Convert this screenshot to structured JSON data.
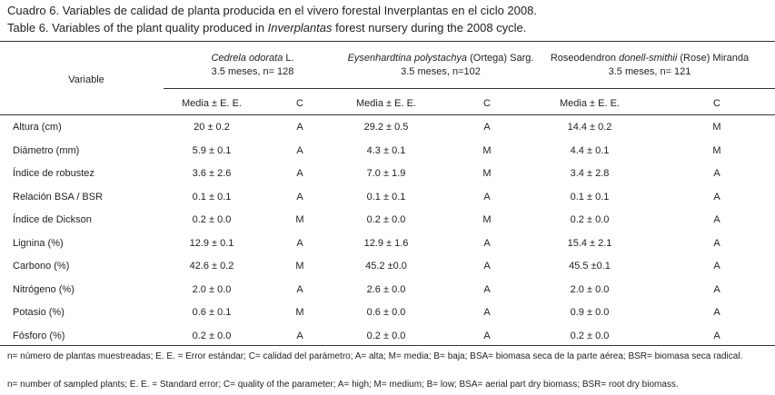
{
  "caption": {
    "es": [
      {
        "text": "Cuadro 6. Variables de calidad de planta producida en el vivero forestal Inverplantas en el ciclo 2008."
      }
    ],
    "en": [
      {
        "text": "Table 6. Variables of the plant quality produced in "
      },
      {
        "text": "Inverplantas",
        "italic": true
      },
      {
        "text": " forest nursery during the 2008 cycle."
      }
    ]
  },
  "table": {
    "header": {
      "variable": "Variable",
      "groups": [
        {
          "name": [
            {
              "text": "Cedrela odorata",
              "italic": true
            },
            {
              "text": " L."
            }
          ],
          "detail": "3.5 meses, n= 128",
          "columns": [
            "Media ± E. E.",
            "C"
          ]
        },
        {
          "name": [
            {
              "text": "Eysenhardtina polystachya",
              "italic": true
            },
            {
              "text": " (Ortega) Sarg."
            }
          ],
          "detail": "3.5 meses, n=102",
          "columns": [
            "Media ± E. E.",
            "C"
          ]
        },
        {
          "name": [
            {
              "text": "Roseodendron "
            },
            {
              "text": "donell-smithii",
              "italic": true
            },
            {
              "text": " (Rose) Miranda"
            }
          ],
          "detail": "3.5 meses, n= 121",
          "columns": [
            "Media ± E. E.",
            "C"
          ]
        }
      ]
    },
    "rows": [
      [
        "Altura (cm)",
        "20 ± 0.2",
        "A",
        "29.2 ± 0.5",
        "A",
        "14.4 ± 0.2",
        "M"
      ],
      [
        "Diámetro (mm)",
        "5.9 ± 0.1",
        "A",
        "4.3 ± 0.1",
        "M",
        "4.4 ± 0.1",
        "M"
      ],
      [
        "Índice de robustez",
        "3.6 ± 2.6",
        "A",
        "7.0 ± 1.9",
        "M",
        "3.4 ± 2.8",
        "A"
      ],
      [
        "Relación BSA / BSR",
        "0.1 ± 0.1",
        "A",
        "0.1 ± 0.1",
        "A",
        "0.1 ± 0.1",
        "A"
      ],
      [
        "Índice de Dickson",
        "0.2 ± 0.0",
        "M",
        "0.2 ± 0.0",
        "M",
        "0.2 ± 0.0",
        "A"
      ],
      [
        "Lignina (%)",
        "12.9 ± 0.1",
        "A",
        "12.9 ± 1.6",
        "A",
        "15.4 ± 2.1",
        "A"
      ],
      [
        "Carbono (%)",
        "42.6 ± 0.2",
        "M",
        "45.2 ±0.0",
        "A",
        "45.5 ±0.1",
        "A"
      ],
      [
        "Nitrógeno (%)",
        "2.0 ± 0.0",
        "A",
        "2.6 ± 0.0",
        "A",
        "2.0 ± 0.0",
        "A"
      ],
      [
        "Potasio (%)",
        "0.6 ± 0.1",
        "M",
        "0.6 ± 0.0",
        "A",
        "0.9 ± 0.0",
        "A"
      ],
      [
        "Fósforo (%)",
        "0.2 ± 0.0",
        "A",
        "0.2 ± 0.0",
        "A",
        "0.2 ± 0.0",
        "A"
      ]
    ]
  },
  "footnotes": [
    "n= número de plantas muestreadas; E. E. = Error estándar; C= calidad del parámetro; A= alta; M= media; B= baja; BSA= biomasa seca de la parte aérea; BSR= biomasa seca radical.",
    "n= number of sampled plants; E. E. = Standard error; C= quality of the parameter; A= high; M= medium; B= low; BSA= aerial part dry biomass; BSR= root dry biomass."
  ]
}
